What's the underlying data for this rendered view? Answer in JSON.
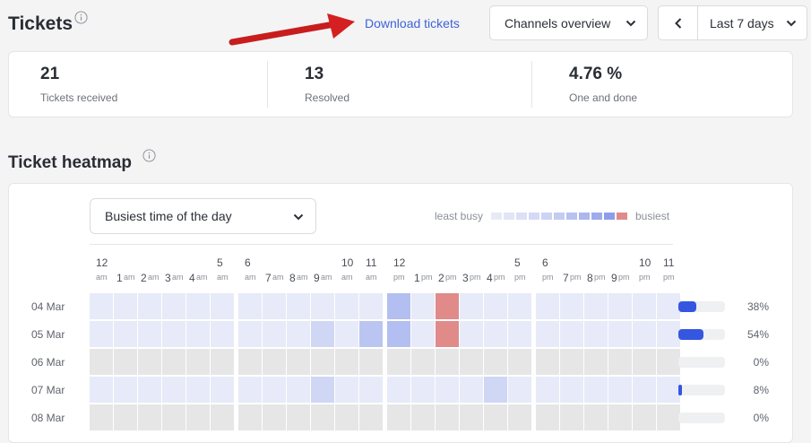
{
  "header": {
    "title": "Tickets",
    "download_label": "Download tickets",
    "channel_select": "Channels overview",
    "range_select": "Last 7 days"
  },
  "stats": [
    {
      "value": "21",
      "label": "Tickets received"
    },
    {
      "value": "13",
      "label": "Resolved"
    },
    {
      "value": "4.76 %",
      "label": "One and done"
    }
  ],
  "heatmap": {
    "title": "Ticket heatmap",
    "select_value": "Busiest time of the day",
    "legend_least": "least busy",
    "legend_most": "busiest",
    "legend_colors": [
      "#e7eaf6",
      "#e1e5f6",
      "#dbe0f6",
      "#d4daf5",
      "#ccd3f4",
      "#c3ccf2",
      "#b8c2f0",
      "#abb7ee",
      "#9eacec",
      "#8e9de9",
      "#e08a8a"
    ],
    "hour_numbers": [
      "12",
      "1",
      "2",
      "3",
      "4",
      "5",
      "6",
      "7",
      "8",
      "9",
      "10",
      "11",
      "12",
      "1",
      "2",
      "3",
      "4",
      "5",
      "6",
      "7",
      "8",
      "9",
      "10",
      "11"
    ],
    "hour_ampm": [
      "am",
      "am",
      "am",
      "am",
      "am",
      "am",
      "am",
      "am",
      "am",
      "am",
      "am",
      "am",
      "pm",
      "pm",
      "pm",
      "pm",
      "pm",
      "pm",
      "pm",
      "pm",
      "pm",
      "pm",
      "pm",
      "pm"
    ],
    "colors": {
      "none": "#e6e6e7",
      "base": "#e7eaf8",
      "light": "#cfd7f5",
      "mid": "#bac5f1",
      "busy": "#b3bff0",
      "hot": "#e08a8a",
      "bar": "#3556e0"
    },
    "rows": [
      {
        "date": "04 Mar",
        "pct": "38%",
        "share": 0.38,
        "cells": {
          "12": "busy",
          "14": "hot"
        }
      },
      {
        "date": "05 Mar",
        "pct": "54%",
        "share": 0.54,
        "cells": {
          "9": "light",
          "11": "mid",
          "12": "busy",
          "14": "hot"
        }
      },
      {
        "date": "06 Mar",
        "pct": "0%",
        "share": 0.0,
        "cells": {}
      },
      {
        "date": "07 Mar",
        "pct": "8%",
        "share": 0.08,
        "cells": {
          "9": "light",
          "16": "light"
        }
      },
      {
        "date": "08 Mar",
        "pct": "0%",
        "share": 0.0,
        "cells": {}
      }
    ]
  }
}
